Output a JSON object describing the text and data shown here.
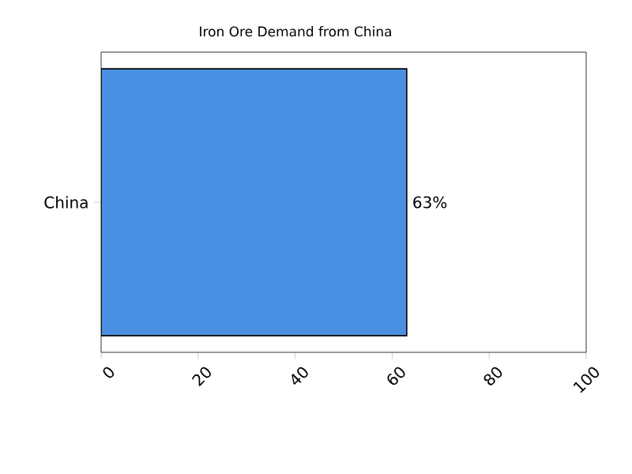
{
  "chart_data": {
    "type": "bar",
    "orientation": "horizontal",
    "title": "Iron Ore Demand from China",
    "categories": [
      "China"
    ],
    "values": [
      63
    ],
    "value_labels": [
      "63%"
    ],
    "color": "#4a90e2",
    "xlim": [
      0,
      100
    ],
    "xticks": [
      0,
      20,
      40,
      60,
      80,
      100
    ]
  }
}
